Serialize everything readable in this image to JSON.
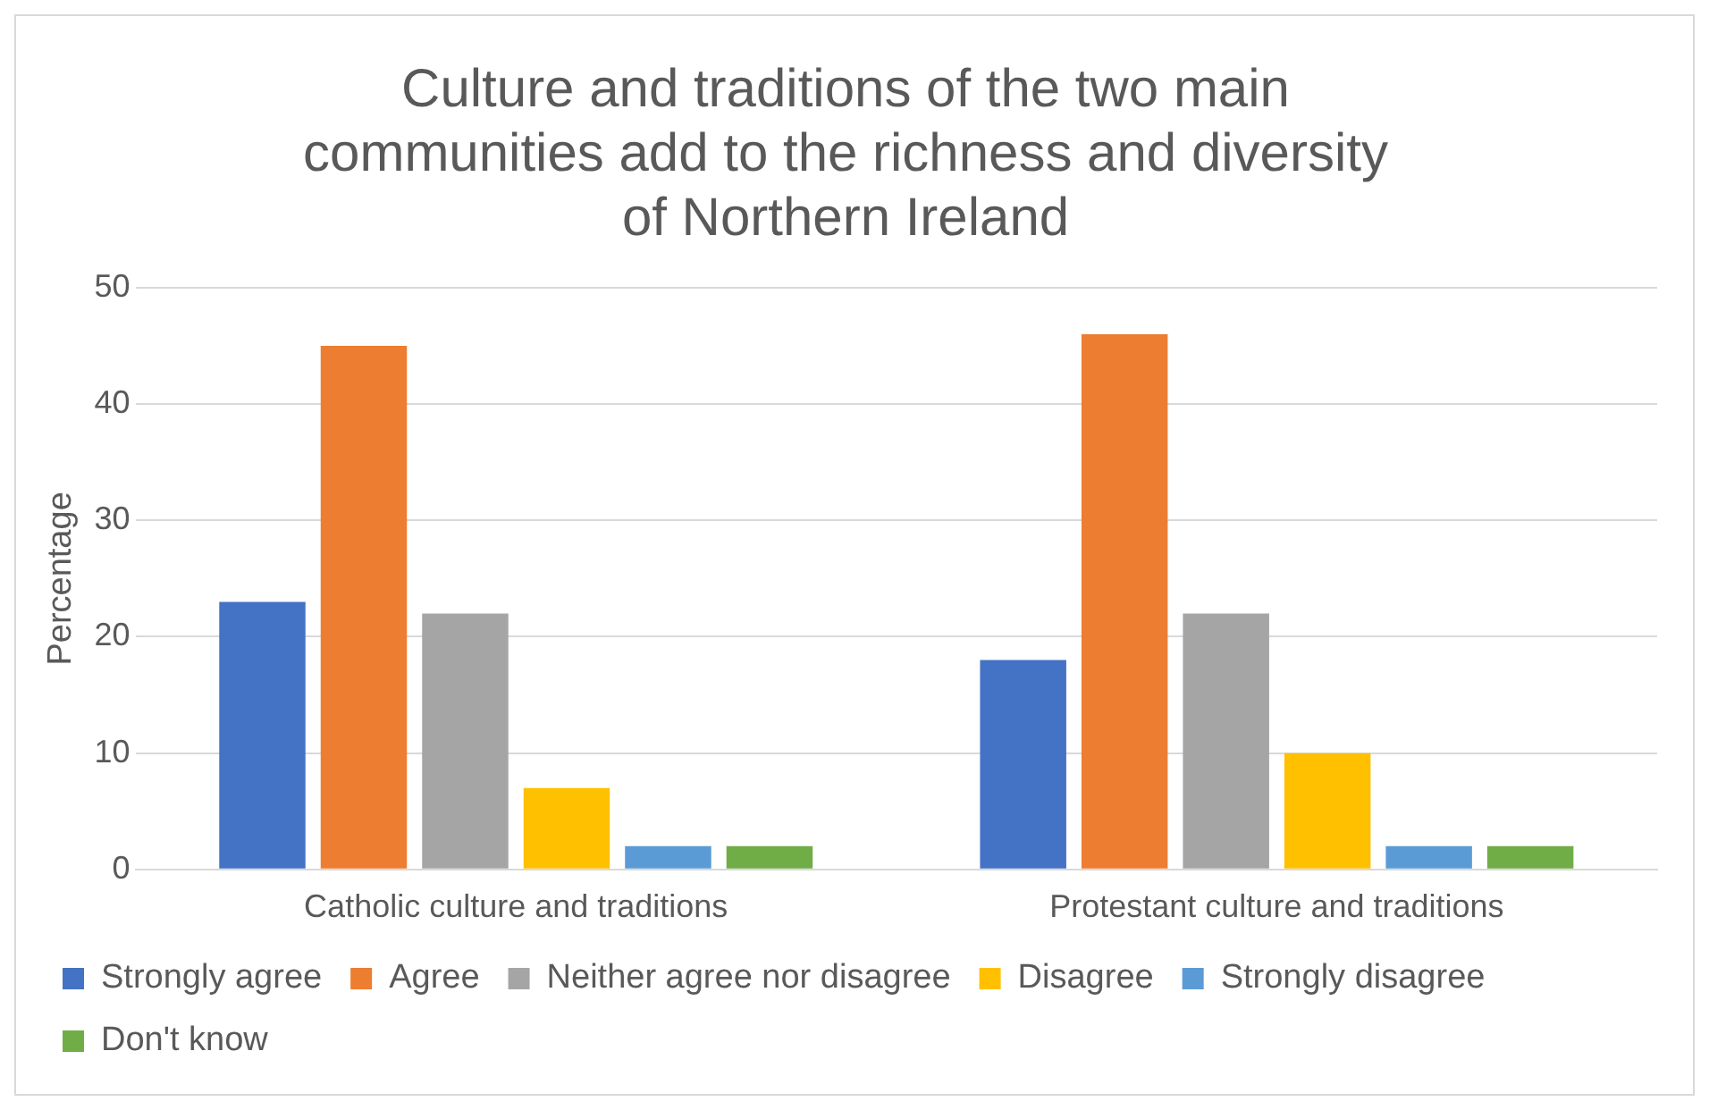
{
  "chart_data": {
    "type": "bar",
    "title": "Culture and traditions of the two main communities add to the richness and diversity of Northern Ireland",
    "ylabel": "Percentage",
    "categories": [
      "Catholic culture and traditions",
      "Protestant culture and traditions"
    ],
    "series": [
      {
        "name": "Strongly agree",
        "color": "#4472c4",
        "values": [
          23,
          18
        ]
      },
      {
        "name": "Agree",
        "color": "#ed7d31",
        "values": [
          45,
          46
        ]
      },
      {
        "name": "Neither agree nor disagree",
        "color": "#a5a5a5",
        "values": [
          22,
          22
        ]
      },
      {
        "name": "Disagree",
        "color": "#ffc000",
        "values": [
          7,
          10
        ]
      },
      {
        "name": "Strongly disagree",
        "color": "#5b9bd5",
        "values": [
          2,
          2
        ]
      },
      {
        "name": "Don't know",
        "color": "#70ad47",
        "values": [
          2,
          2
        ]
      }
    ],
    "ylim": [
      0,
      50
    ],
    "yticks": [
      0,
      10,
      20,
      30,
      40,
      50
    ],
    "grid": "y",
    "legend": "bottom"
  }
}
